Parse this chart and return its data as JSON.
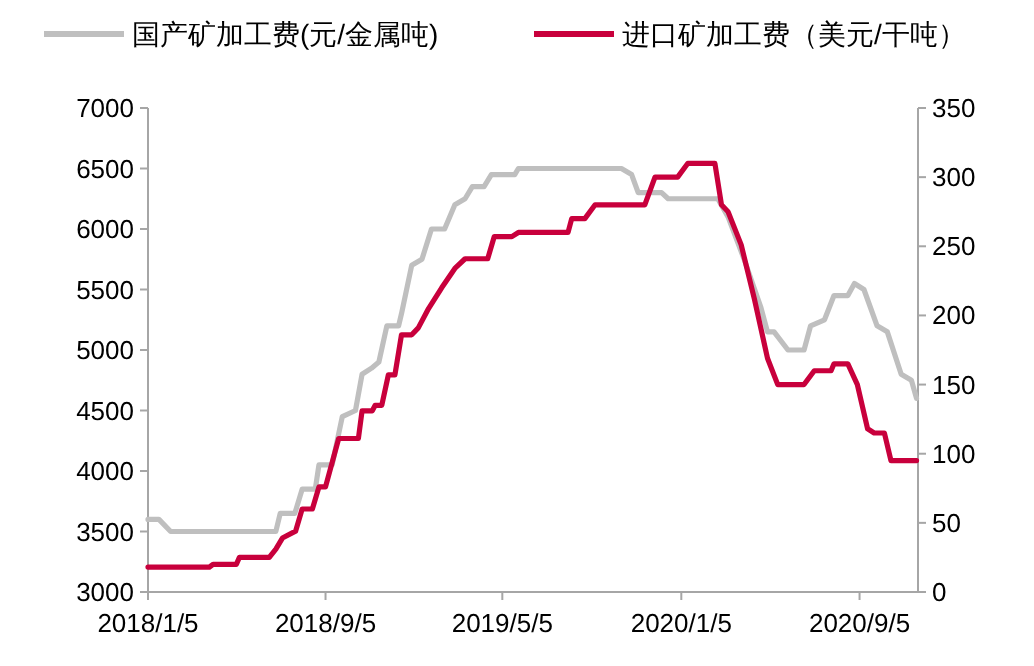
{
  "chart_data": {
    "type": "line",
    "legend": "top",
    "grid": false,
    "xlim": [
      "2018-01-05",
      "2020-11-24"
    ],
    "xticks": [
      {
        "value": "2018-01-05",
        "label": "2018/1/5"
      },
      {
        "value": "2018-09-05",
        "label": "2018/9/5"
      },
      {
        "value": "2019-05-05",
        "label": "2019/5/5"
      },
      {
        "value": "2020-01-05",
        "label": "2020/1/5"
      },
      {
        "value": "2020-09-05",
        "label": "2020/9/5"
      }
    ],
    "ylim": [
      3000,
      7000
    ],
    "yticks": [
      3000,
      3500,
      4000,
      4500,
      5000,
      5500,
      6000,
      6500,
      7000
    ],
    "y2lim": [
      0,
      350
    ],
    "y2ticks": [
      0,
      50,
      100,
      150,
      200,
      250,
      300,
      350
    ],
    "series": [
      {
        "name": "国产矿加工费(元/金属吨)",
        "color": "#bfbfbf",
        "x": [
          "2018-01-05",
          "2018-01-20",
          "2018-02-05",
          "2018-06-29",
          "2018-07-05",
          "2018-07-25",
          "2018-08-04",
          "2018-08-22",
          "2018-08-27",
          "2018-09-14",
          "2018-09-28",
          "2018-10-16",
          "2018-10-25",
          "2018-11-07",
          "2018-11-17",
          "2018-11-28",
          "2018-12-14",
          "2018-12-18",
          "2019-01-01",
          "2019-01-15",
          "2019-01-28",
          "2019-02-15",
          "2019-03-01",
          "2019-03-15",
          "2019-03-25",
          "2019-04-10",
          "2019-04-20",
          "2019-05-22",
          "2019-05-27",
          "2019-10-15",
          "2019-10-29",
          "2019-11-07",
          "2019-12-09",
          "2019-12-18",
          "2020-02-24",
          "2020-03-09",
          "2020-03-31",
          "2020-04-23",
          "2020-05-02",
          "2020-05-11",
          "2020-05-30",
          "2020-06-21",
          "2020-06-30",
          "2020-07-19",
          "2020-08-01",
          "2020-08-20",
          "2020-08-29",
          "2020-09-11",
          "2020-09-29",
          "2020-10-13",
          "2020-11-01",
          "2020-11-15",
          "2020-11-22"
        ],
        "values": [
          3600,
          3600,
          3500,
          3500,
          3650,
          3650,
          3850,
          3850,
          4050,
          4050,
          4450,
          4500,
          4800,
          4850,
          4900,
          5200,
          5200,
          5300,
          5700,
          5750,
          6000,
          6000,
          6200,
          6250,
          6350,
          6350,
          6450,
          6450,
          6500,
          6500,
          6450,
          6300,
          6300,
          6250,
          6250,
          6100,
          5750,
          5350,
          5150,
          5150,
          5000,
          5000,
          5200,
          5250,
          5450,
          5450,
          5550,
          5500,
          5200,
          5150,
          4800,
          4750,
          4600
        ]
      },
      {
        "name": "进口矿加工费（美元/干吨）",
        "color": "#c8003c",
        "axis": "y2",
        "x": [
          "2018-01-05",
          "2018-03-30",
          "2018-04-04",
          "2018-05-06",
          "2018-05-10",
          "2018-06-20",
          "2018-06-29",
          "2018-07-08",
          "2018-07-26",
          "2018-08-04",
          "2018-08-18",
          "2018-08-27",
          "2018-09-05",
          "2018-09-23",
          "2018-10-20",
          "2018-10-25",
          "2018-11-08",
          "2018-11-12",
          "2018-11-21",
          "2018-11-30",
          "2018-12-09",
          "2018-12-18",
          "2019-01-01",
          "2019-01-10",
          "2019-01-24",
          "2019-02-11",
          "2019-03-01",
          "2019-03-15",
          "2019-04-15",
          "2019-04-24",
          "2019-05-18",
          "2019-05-27",
          "2019-08-03",
          "2019-08-08",
          "2019-08-26",
          "2019-09-09",
          "2019-11-16",
          "2019-11-30",
          "2019-12-31",
          "2020-01-14",
          "2020-02-20",
          "2020-02-29",
          "2020-03-09",
          "2020-03-27",
          "2020-04-14",
          "2020-05-02",
          "2020-05-16",
          "2020-06-21",
          "2020-07-05",
          "2020-07-28",
          "2020-08-01",
          "2020-08-20",
          "2020-09-02",
          "2020-09-16",
          "2020-09-25",
          "2020-10-09",
          "2020-10-18",
          "2020-11-22"
        ],
        "values": [
          18,
          18,
          20,
          20,
          25,
          25,
          31,
          39,
          44,
          60,
          60,
          76,
          76,
          111,
          111,
          131,
          131,
          135,
          135,
          157,
          157,
          186,
          186,
          191,
          205,
          220,
          234,
          241,
          241,
          257,
          257,
          260,
          260,
          270,
          270,
          280,
          280,
          300,
          300,
          310,
          310,
          280,
          275,
          251,
          212,
          169,
          150,
          150,
          160,
          160,
          165,
          165,
          150,
          118,
          115,
          115,
          95,
          95
        ]
      }
    ]
  }
}
